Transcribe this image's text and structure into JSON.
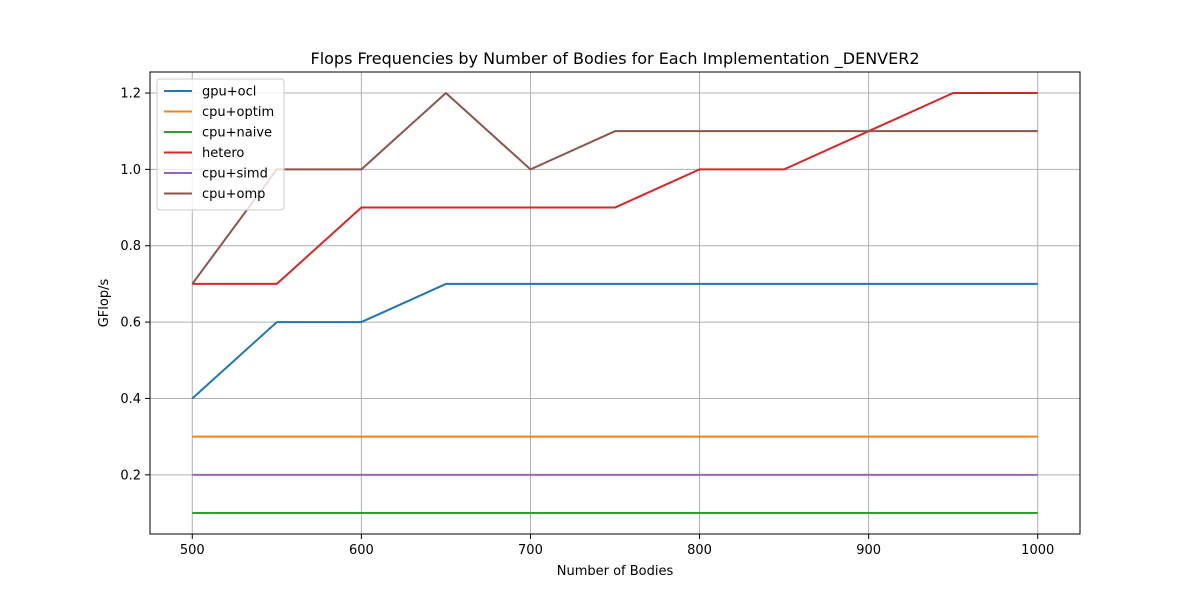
{
  "chart_data": {
    "type": "line",
    "title": "Flops Frequencies by Number of Bodies for Each Implementation _DENVER2",
    "xlabel": "Number of Bodies",
    "ylabel": "GFlop/s",
    "xlim": [
      475,
      1025
    ],
    "ylim": [
      0.045,
      1.255
    ],
    "xticks": [
      500,
      600,
      700,
      800,
      900,
      1000
    ],
    "xtick_labels": [
      "500",
      "600",
      "700",
      "800",
      "900",
      "1000"
    ],
    "yticks": [
      0.2,
      0.4,
      0.6,
      0.8,
      1.0,
      1.2
    ],
    "ytick_labels": [
      "0.2",
      "0.4",
      "0.6",
      "0.8",
      "1.0",
      "1.2"
    ],
    "grid": true,
    "legend_position": "top-left",
    "x": [
      500,
      550,
      600,
      650,
      700,
      750,
      800,
      850,
      900,
      950,
      1000
    ],
    "series": [
      {
        "name": "gpu+ocl",
        "color": "#1f77b4",
        "values": [
          0.4,
          0.6,
          0.6,
          0.7,
          0.7,
          0.7,
          0.7,
          0.7,
          0.7,
          0.7,
          0.7
        ]
      },
      {
        "name": "cpu+optim",
        "color": "#ff7f0e",
        "values": [
          0.3,
          0.3,
          0.3,
          0.3,
          0.3,
          0.3,
          0.3,
          0.3,
          0.3,
          0.3,
          0.3
        ]
      },
      {
        "name": "cpu+naive",
        "color": "#2ca02c",
        "values": [
          0.1,
          0.1,
          0.1,
          0.1,
          0.1,
          0.1,
          0.1,
          0.1,
          0.1,
          0.1,
          0.1
        ]
      },
      {
        "name": "hetero",
        "color": "#d62728",
        "values": [
          0.7,
          0.7,
          0.9,
          0.9,
          0.9,
          0.9,
          1.0,
          1.0,
          1.1,
          1.2,
          1.2
        ]
      },
      {
        "name": "cpu+simd",
        "color": "#9467bd",
        "values": [
          0.2,
          0.2,
          0.2,
          0.2,
          0.2,
          0.2,
          0.2,
          0.2,
          0.2,
          0.2,
          0.2
        ]
      },
      {
        "name": "cpu+omp",
        "color": "#8c564b",
        "values": [
          0.7,
          1.0,
          1.0,
          1.2,
          1.0,
          1.1,
          1.1,
          1.1,
          1.1,
          1.1,
          1.1
        ]
      }
    ]
  }
}
